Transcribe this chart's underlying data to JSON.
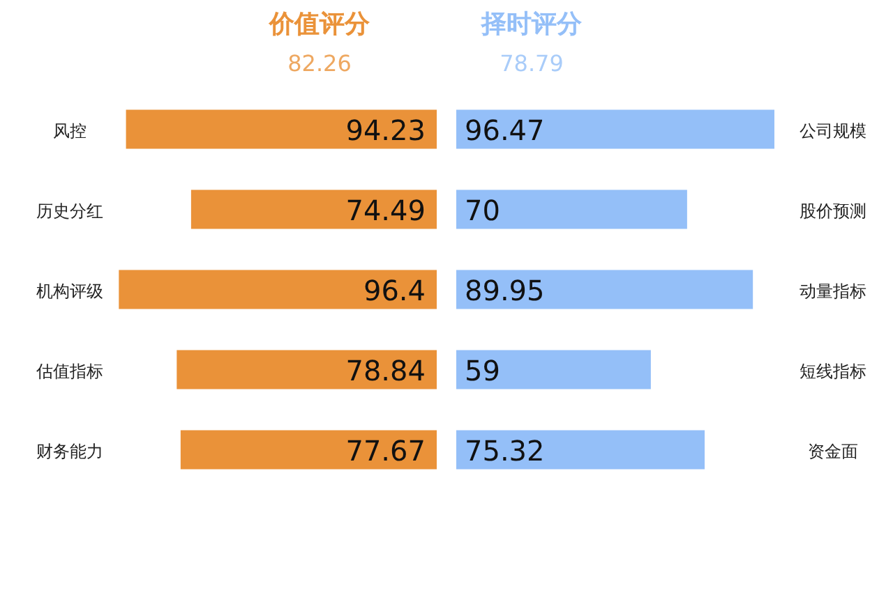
{
  "chart_data": [
    {
      "type": "bar",
      "orientation": "horizontal",
      "title": "价值评分",
      "subtitle": "82.26",
      "categories": [
        "风控",
        "历史分红",
        "机构评级",
        "估值指标",
        "财务能力"
      ],
      "values": [
        94.23,
        74.49,
        96.4,
        78.84,
        77.67
      ],
      "color": "#ea9239",
      "tick_labels": "y",
      "data_labels": true
    },
    {
      "type": "bar",
      "orientation": "horizontal",
      "title": "择时评分",
      "subtitle": "78.79",
      "categories": [
        "公司规模",
        "股价预测",
        "动量指标",
        "短线指标",
        "资金面"
      ],
      "values": [
        96.47,
        70,
        89.95,
        59,
        75.32
      ],
      "color": "#94bff8",
      "tick_labels": "y",
      "data_labels": true
    }
  ]
}
